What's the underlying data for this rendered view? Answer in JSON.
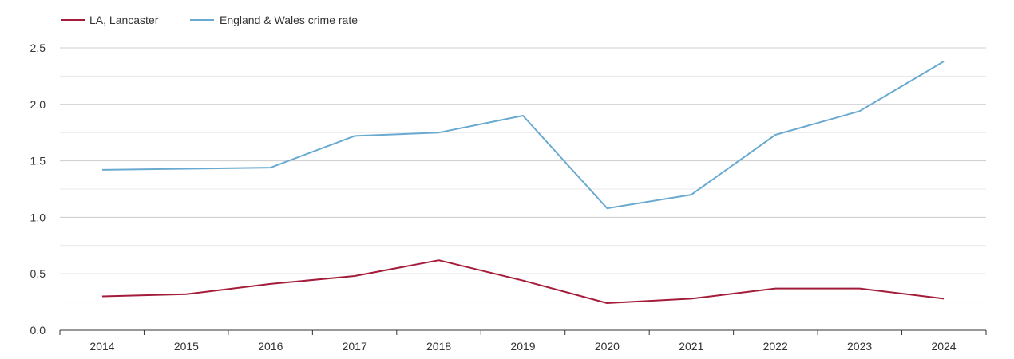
{
  "colors": {
    "lancaster": "#a31d3a",
    "england_wales": "#6aaad0"
  },
  "legend": {
    "placement": "top-left",
    "items": [
      {
        "label": "LA, Lancaster",
        "series": 0
      },
      {
        "label": "England & Wales crime rate",
        "series": 1
      }
    ]
  },
  "chart_data": {
    "type": "line",
    "title": "",
    "xlabel": "",
    "ylabel": "",
    "x": [
      "2014",
      "2015",
      "2016",
      "2017",
      "2018",
      "2019",
      "2020",
      "2021",
      "2022",
      "2023",
      "2024"
    ],
    "ylim": [
      0,
      2.5
    ],
    "yticks": [
      "0.0",
      "0.5",
      "1.0",
      "1.5",
      "2.0",
      "2.5"
    ],
    "grid": true,
    "series": [
      {
        "name": "LA, Lancaster",
        "color": "#a31d3a",
        "values": [
          0.3,
          0.32,
          0.41,
          0.48,
          0.62,
          0.44,
          0.24,
          0.28,
          0.37,
          0.37,
          0.28
        ]
      },
      {
        "name": "England & Wales crime rate",
        "color": "#6aaad0",
        "values": [
          1.42,
          1.43,
          1.44,
          1.72,
          1.75,
          1.9,
          1.08,
          1.2,
          1.73,
          1.94,
          2.38
        ]
      }
    ]
  }
}
